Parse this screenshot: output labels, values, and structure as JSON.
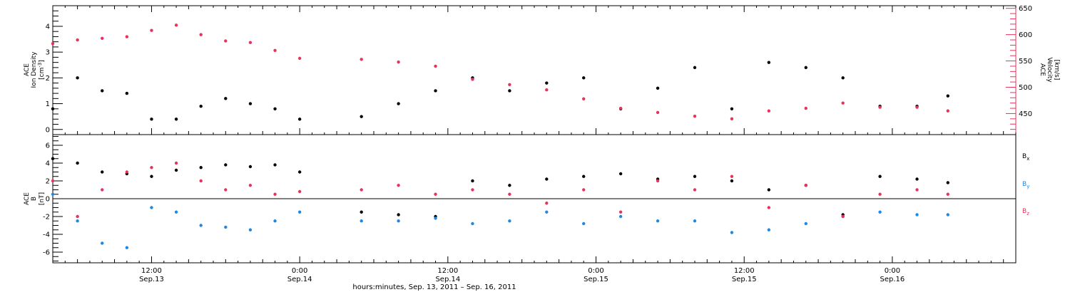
{
  "colors": {
    "black": "#000000",
    "pink": "#e8325e",
    "blue": "#1e88e5"
  },
  "xaxis": {
    "title": "hours:minutes, Sep. 13, 2011 – Sep. 16, 2011",
    "xlim": [
      4,
      82
    ],
    "major_ticks": [
      {
        "x": 12,
        "time": "12:00",
        "date": "Sep.13"
      },
      {
        "x": 24,
        "time": "0:00",
        "date": "Sep.14"
      },
      {
        "x": 36,
        "time": "12:00",
        "date": "Sep.14"
      },
      {
        "x": 48,
        "time": "0:00",
        "date": "Sep.15"
      },
      {
        "x": 60,
        "time": "12:00",
        "date": "Sep.15"
      },
      {
        "x": 72,
        "time": "0:00",
        "date": "Sep.16"
      }
    ],
    "x_unit": "hours since Sep. 13, 2011 00:00"
  },
  "top_panel": {
    "left_ylabel": {
      "line1": "ACE",
      "line2": "Ion Density",
      "line3": "[cm",
      "sup": "-3",
      "end": "]"
    },
    "right_ylabel": {
      "line1": "ACE",
      "line2": "Velocity",
      "line3": "[km/s]"
    },
    "left_ylim": [
      -0.2,
      4.8
    ],
    "left_ticks": [
      "0",
      "1",
      "2",
      "3",
      "4"
    ],
    "right_ylim": [
      410,
      655
    ],
    "right_ticks": [
      "450",
      "500",
      "550",
      "600",
      "650"
    ]
  },
  "bottom_panel": {
    "ylabel": {
      "line1": "ACE",
      "line2": "B",
      "line3": "[nT]"
    },
    "ylim": [
      -7.2,
      7.2
    ],
    "ticks": [
      "-6",
      "-4",
      "-2",
      "0",
      "2",
      "4",
      "6"
    ],
    "legend": [
      {
        "name": "B",
        "sub": "x",
        "color": "#000000"
      },
      {
        "name": "B",
        "sub": "y",
        "color": "#1e88e5"
      },
      {
        "name": "B",
        "sub": "z",
        "color": "#e8325e"
      }
    ]
  },
  "chart_data": [
    {
      "type": "scatter",
      "panel": "top",
      "ylabel": "ACE Ion Density [cm-3]",
      "xlabel": "hours:minutes, Sep. 13, 2011 – Sep. 16, 2011",
      "series": [
        {
          "name": "Ion Density",
          "color": "#000000",
          "axis": "left",
          "x": [
            4,
            6,
            8,
            10,
            12,
            14,
            16,
            18,
            20,
            22,
            24,
            29,
            32,
            35,
            38,
            41,
            44,
            47,
            50,
            53,
            56,
            59,
            62,
            65,
            68,
            71,
            74,
            76.5
          ],
          "y": [
            0.8,
            2.0,
            1.5,
            1.4,
            0.4,
            0.4,
            0.9,
            1.2,
            1.0,
            0.8,
            0.4,
            0.5,
            1.0,
            1.5,
            2.0,
            1.5,
            1.8,
            2.0,
            0.8,
            1.6,
            2.4,
            0.8,
            2.6,
            2.4,
            2.0,
            0.9,
            0.9,
            1.3
          ]
        },
        {
          "name": "Velocity",
          "color": "#e8325e",
          "axis": "right",
          "x": [
            4,
            6,
            8,
            10,
            12,
            14,
            16,
            18,
            20,
            22,
            24,
            29,
            32,
            35,
            38,
            41,
            44,
            47,
            50,
            53,
            56,
            59,
            62,
            65,
            68,
            71,
            74,
            76.5
          ],
          "y": [
            583,
            590,
            593,
            596,
            608,
            618,
            600,
            588,
            585,
            570,
            555,
            553,
            548,
            540,
            515,
            505,
            495,
            478,
            460,
            452,
            445,
            440,
            455,
            460,
            470,
            462,
            462,
            455
          ]
        }
      ]
    },
    {
      "type": "scatter",
      "panel": "bottom",
      "ylabel": "ACE B [nT]",
      "series": [
        {
          "name": "Bx",
          "color": "#000000",
          "x": [
            4,
            6,
            8,
            10,
            12,
            14,
            16,
            18,
            20,
            22,
            24,
            29,
            32,
            35,
            38,
            41,
            44,
            47,
            50,
            53,
            56,
            59,
            62,
            65,
            68,
            71,
            74,
            76.5
          ],
          "y": [
            4.5,
            4.0,
            3.0,
            2.8,
            2.5,
            3.2,
            3.5,
            3.8,
            3.6,
            3.8,
            3.0,
            -1.5,
            -1.8,
            -2.0,
            2.0,
            1.5,
            2.2,
            2.5,
            2.8,
            2.2,
            2.5,
            2.0,
            1.0,
            1.5,
            -1.8,
            2.5,
            2.2,
            1.8
          ]
        },
        {
          "name": "By",
          "color": "#1e88e5",
          "x": [
            4,
            6,
            8,
            10,
            12,
            14,
            16,
            18,
            20,
            22,
            24,
            29,
            32,
            35,
            38,
            41,
            44,
            47,
            50,
            53,
            56,
            59,
            62,
            65,
            68,
            71,
            74,
            76.5
          ],
          "y": [
            0.5,
            -2.5,
            -5.0,
            -5.5,
            -1.0,
            -1.5,
            -3.0,
            -3.2,
            -3.5,
            -2.5,
            -1.5,
            -2.5,
            -2.5,
            -2.2,
            -2.8,
            -2.5,
            -1.5,
            -2.8,
            -2.0,
            -2.5,
            -2.5,
            -3.8,
            -3.5,
            -2.8,
            -2.0,
            -1.5,
            -1.8,
            -1.8
          ]
        },
        {
          "name": "Bz",
          "color": "#e8325e",
          "x": [
            4,
            6,
            8,
            10,
            12,
            14,
            16,
            18,
            20,
            22,
            24,
            29,
            32,
            35,
            38,
            41,
            44,
            47,
            50,
            53,
            56,
            59,
            62,
            65,
            68,
            71,
            74,
            76.5
          ],
          "y": [
            2.0,
            -2.0,
            1.0,
            3.0,
            3.5,
            4.0,
            2.0,
            1.0,
            1.5,
            0.5,
            0.8,
            1.0,
            1.5,
            0.5,
            1.0,
            0.5,
            -0.5,
            1.0,
            -1.5,
            2.0,
            1.0,
            2.5,
            -1.0,
            1.5,
            -2.0,
            0.5,
            1.0,
            0.5
          ]
        }
      ]
    }
  ]
}
